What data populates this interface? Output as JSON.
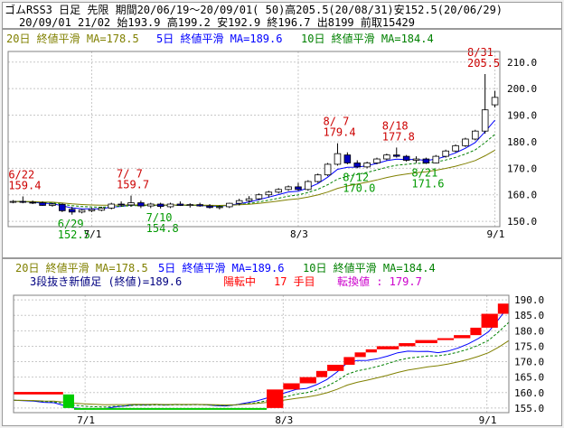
{
  "header": {
    "line1": "ゴムRSS3 日足 先限 期間20/06/19～20/09/01( 50)高205.5(20/08/31)安152.5(20/06/29)",
    "line2": "20/09/01 21/02 始193.9 高199.2 安192.9 終196.7 出8199 前取15429"
  },
  "legend": {
    "ma20": "20日 終値平滑 MA=178.5",
    "ma5": "5日 終値平滑 MA=189.6",
    "ma10": "10日 終値平滑 MA=184.4"
  },
  "colors": {
    "ma20": "#808000",
    "ma5": "#0000ff",
    "ma10": "#008000",
    "candle_down": "#0000c0",
    "up_annotation": "#cc0000",
    "down_annotation": "#009900",
    "brick_up": "#ff0000",
    "brick_down": "#00cc00",
    "info_title": "#000080",
    "info_accent": "#ff0000",
    "info_value": "#cc00cc"
  },
  "info": {
    "title": "3段抜き新値足 (終値)=189.6",
    "status": "陽転中",
    "count": "17 手目",
    "conv": "転換値 : 179.7"
  },
  "chart_data": [
    {
      "type": "candlestick",
      "title": "",
      "x_tick_labels": [
        "7/1",
        "8/3",
        "9/1"
      ],
      "y_ticks": [
        150,
        160,
        170,
        180,
        190,
        200,
        210
      ],
      "ylim": [
        148,
        214
      ],
      "grid": true,
      "candles": [
        {
          "date": "06/19",
          "o": 157.2,
          "h": 158.0,
          "l": 156.8,
          "c": 157.5
        },
        {
          "date": "06/22",
          "o": 157.5,
          "h": 159.4,
          "l": 156.8,
          "c": 157.2
        },
        {
          "date": "06/23",
          "o": 157.2,
          "h": 157.8,
          "l": 156.5,
          "c": 156.9
        },
        {
          "date": "06/24",
          "o": 157.0,
          "h": 157.5,
          "l": 155.8,
          "c": 156.0
        },
        {
          "date": "06/25",
          "o": 156.0,
          "h": 157.0,
          "l": 155.5,
          "c": 156.5
        },
        {
          "date": "06/26",
          "o": 156.4,
          "h": 156.8,
          "l": 153.5,
          "c": 154.0
        },
        {
          "date": "06/29",
          "o": 154.5,
          "h": 155.5,
          "l": 152.5,
          "c": 153.5
        },
        {
          "date": "06/30",
          "o": 153.5,
          "h": 154.5,
          "l": 153.0,
          "c": 154.2
        },
        {
          "date": "07/01",
          "o": 154.0,
          "h": 155.0,
          "l": 153.5,
          "c": 154.5
        },
        {
          "date": "07/02",
          "o": 154.2,
          "h": 155.5,
          "l": 153.8,
          "c": 155.0
        },
        {
          "date": "07/03",
          "o": 155.0,
          "h": 157.0,
          "l": 154.5,
          "c": 156.5
        },
        {
          "date": "07/06",
          "o": 156.5,
          "h": 157.5,
          "l": 155.5,
          "c": 156.2
        },
        {
          "date": "07/07",
          "o": 156.2,
          "h": 159.7,
          "l": 155.5,
          "c": 157.0
        },
        {
          "date": "07/08",
          "o": 157.0,
          "h": 157.8,
          "l": 155.0,
          "c": 155.8
        },
        {
          "date": "07/09",
          "o": 155.8,
          "h": 157.0,
          "l": 155.0,
          "c": 156.5
        },
        {
          "date": "07/10",
          "o": 156.5,
          "h": 157.0,
          "l": 154.8,
          "c": 155.6
        },
        {
          "date": "07/13",
          "o": 155.5,
          "h": 157.0,
          "l": 155.0,
          "c": 156.5
        },
        {
          "date": "07/14",
          "o": 156.5,
          "h": 157.5,
          "l": 155.8,
          "c": 156.0
        },
        {
          "date": "07/15",
          "o": 156.0,
          "h": 156.8,
          "l": 155.2,
          "c": 156.3
        },
        {
          "date": "07/16",
          "o": 156.3,
          "h": 157.0,
          "l": 155.5,
          "c": 155.8
        },
        {
          "date": "07/17",
          "o": 155.8,
          "h": 156.5,
          "l": 154.8,
          "c": 155.2
        },
        {
          "date": "07/20",
          "o": 155.2,
          "h": 156.0,
          "l": 154.5,
          "c": 155.5
        },
        {
          "date": "07/21",
          "o": 155.5,
          "h": 157.0,
          "l": 155.0,
          "c": 156.8
        },
        {
          "date": "07/22",
          "o": 156.8,
          "h": 158.5,
          "l": 156.0,
          "c": 157.8
        },
        {
          "date": "07/27",
          "o": 157.8,
          "h": 159.5,
          "l": 157.0,
          "c": 158.5
        },
        {
          "date": "07/28",
          "o": 158.5,
          "h": 160.5,
          "l": 158.0,
          "c": 160.0
        },
        {
          "date": "07/29",
          "o": 160.0,
          "h": 161.5,
          "l": 159.0,
          "c": 161.0
        },
        {
          "date": "07/30",
          "o": 161.0,
          "h": 162.5,
          "l": 160.5,
          "c": 162.0
        },
        {
          "date": "07/31",
          "o": 162.0,
          "h": 163.5,
          "l": 161.5,
          "c": 163.0
        },
        {
          "date": "08/03",
          "o": 163.0,
          "h": 164.5,
          "l": 161.5,
          "c": 162.0
        },
        {
          "date": "08/04",
          "o": 162.0,
          "h": 165.5,
          "l": 161.5,
          "c": 165.0
        },
        {
          "date": "08/05",
          "o": 165.0,
          "h": 168.0,
          "l": 164.5,
          "c": 167.5
        },
        {
          "date": "08/06",
          "o": 167.5,
          "h": 172.0,
          "l": 167.0,
          "c": 171.5
        },
        {
          "date": "08/07",
          "o": 171.5,
          "h": 179.4,
          "l": 171.0,
          "c": 175.5
        },
        {
          "date": "08/11",
          "o": 175.0,
          "h": 176.0,
          "l": 171.5,
          "c": 172.0
        },
        {
          "date": "08/12",
          "o": 172.0,
          "h": 173.0,
          "l": 170.0,
          "c": 170.5
        },
        {
          "date": "08/13",
          "o": 170.5,
          "h": 172.5,
          "l": 170.0,
          "c": 172.0
        },
        {
          "date": "08/14",
          "o": 172.0,
          "h": 174.0,
          "l": 171.5,
          "c": 173.5
        },
        {
          "date": "08/17",
          "o": 173.5,
          "h": 175.5,
          "l": 173.0,
          "c": 175.0
        },
        {
          "date": "08/18",
          "o": 175.0,
          "h": 177.8,
          "l": 174.0,
          "c": 174.5
        },
        {
          "date": "08/19",
          "o": 174.5,
          "h": 175.0,
          "l": 172.5,
          "c": 173.0
        },
        {
          "date": "08/20",
          "o": 173.0,
          "h": 174.5,
          "l": 172.0,
          "c": 173.5
        },
        {
          "date": "08/21",
          "o": 173.5,
          "h": 174.0,
          "l": 171.6,
          "c": 172.0
        },
        {
          "date": "08/24",
          "o": 172.0,
          "h": 175.0,
          "l": 171.8,
          "c": 174.5
        },
        {
          "date": "08/25",
          "o": 174.5,
          "h": 177.0,
          "l": 174.0,
          "c": 176.5
        },
        {
          "date": "08/26",
          "o": 176.5,
          "h": 179.0,
          "l": 176.0,
          "c": 178.5
        },
        {
          "date": "08/27",
          "o": 178.5,
          "h": 181.5,
          "l": 178.0,
          "c": 181.0
        },
        {
          "date": "08/28",
          "o": 181.0,
          "h": 184.5,
          "l": 180.5,
          "c": 184.0
        },
        {
          "date": "08/31",
          "o": 184.0,
          "h": 205.5,
          "l": 183.0,
          "c": 192.0
        },
        {
          "date": "09/01",
          "o": 193.9,
          "h": 199.2,
          "l": 192.9,
          "c": 196.7
        }
      ],
      "annotations": [
        {
          "date": "06/22",
          "text": [
            "6/22",
            "159.4"
          ],
          "kind": "high"
        },
        {
          "date": "06/29",
          "text": [
            "6/29",
            "152.5"
          ],
          "kind": "low"
        },
        {
          "date": "07/07",
          "text": [
            "7/ 7",
            "159.7"
          ],
          "kind": "high"
        },
        {
          "date": "07/10",
          "text": [
            "7/10",
            "154.8"
          ],
          "kind": "low"
        },
        {
          "date": "08/07",
          "text": [
            "8/ 7",
            "179.4"
          ],
          "kind": "high"
        },
        {
          "date": "08/12",
          "text": [
            "8/12",
            "170.0"
          ],
          "kind": "low"
        },
        {
          "date": "08/18",
          "text": [
            "8/18",
            "177.8"
          ],
          "kind": "high"
        },
        {
          "date": "08/21",
          "text": [
            "8/21",
            "171.6"
          ],
          "kind": "low"
        },
        {
          "date": "08/31",
          "text": [
            "8/31",
            "205.5"
          ],
          "kind": "high"
        }
      ]
    },
    {
      "type": "new-price bars",
      "title": "",
      "x_tick_labels": [
        "7/1",
        "8/3",
        "9/1"
      ],
      "y_ticks": [
        155,
        160,
        165,
        170,
        175,
        180,
        185,
        190
      ],
      "ylim": [
        153.5,
        191.5
      ],
      "grid": true,
      "bricks": [
        {
          "from": 0,
          "to": 9,
          "low": 159.4,
          "high": 160.2,
          "dir": "up"
        },
        {
          "from": 9,
          "to": 11,
          "low": 155.0,
          "high": 159.4,
          "dir": "down"
        },
        {
          "from": 11,
          "to": 46,
          "low": 154.6,
          "high": 155.0,
          "dir": "down"
        },
        {
          "from": 46,
          "to": 49,
          "low": 155.0,
          "high": 161.0,
          "dir": "up"
        },
        {
          "from": 49,
          "to": 52,
          "low": 161.0,
          "high": 163.0,
          "dir": "up"
        },
        {
          "from": 52,
          "to": 55,
          "low": 163.0,
          "high": 165.0,
          "dir": "up"
        },
        {
          "from": 55,
          "to": 57,
          "low": 165.0,
          "high": 167.0,
          "dir": "up"
        },
        {
          "from": 57,
          "to": 60,
          "low": 167.0,
          "high": 169.0,
          "dir": "up"
        },
        {
          "from": 60,
          "to": 62,
          "low": 169.0,
          "high": 171.5,
          "dir": "up"
        },
        {
          "from": 62,
          "to": 64,
          "low": 171.5,
          "high": 173.0,
          "dir": "up"
        },
        {
          "from": 64,
          "to": 66,
          "low": 173.0,
          "high": 174.0,
          "dir": "up"
        },
        {
          "from": 66,
          "to": 70,
          "low": 174.0,
          "high": 175.0,
          "dir": "up"
        },
        {
          "from": 70,
          "to": 73,
          "low": 175.0,
          "high": 176.0,
          "dir": "up"
        },
        {
          "from": 73,
          "to": 77,
          "low": 176.0,
          "high": 177.0,
          "dir": "up"
        },
        {
          "from": 77,
          "to": 80,
          "low": 177.0,
          "high": 177.6,
          "dir": "up"
        },
        {
          "from": 80,
          "to": 83,
          "low": 177.6,
          "high": 178.6,
          "dir": "up"
        },
        {
          "from": 83,
          "to": 85,
          "low": 178.6,
          "high": 181.0,
          "dir": "up"
        },
        {
          "from": 85,
          "to": 88,
          "low": 181.0,
          "high": 185.5,
          "dir": "up"
        },
        {
          "from": 88,
          "to": 90,
          "low": 185.5,
          "high": 188.8,
          "dir": "up"
        }
      ]
    }
  ]
}
